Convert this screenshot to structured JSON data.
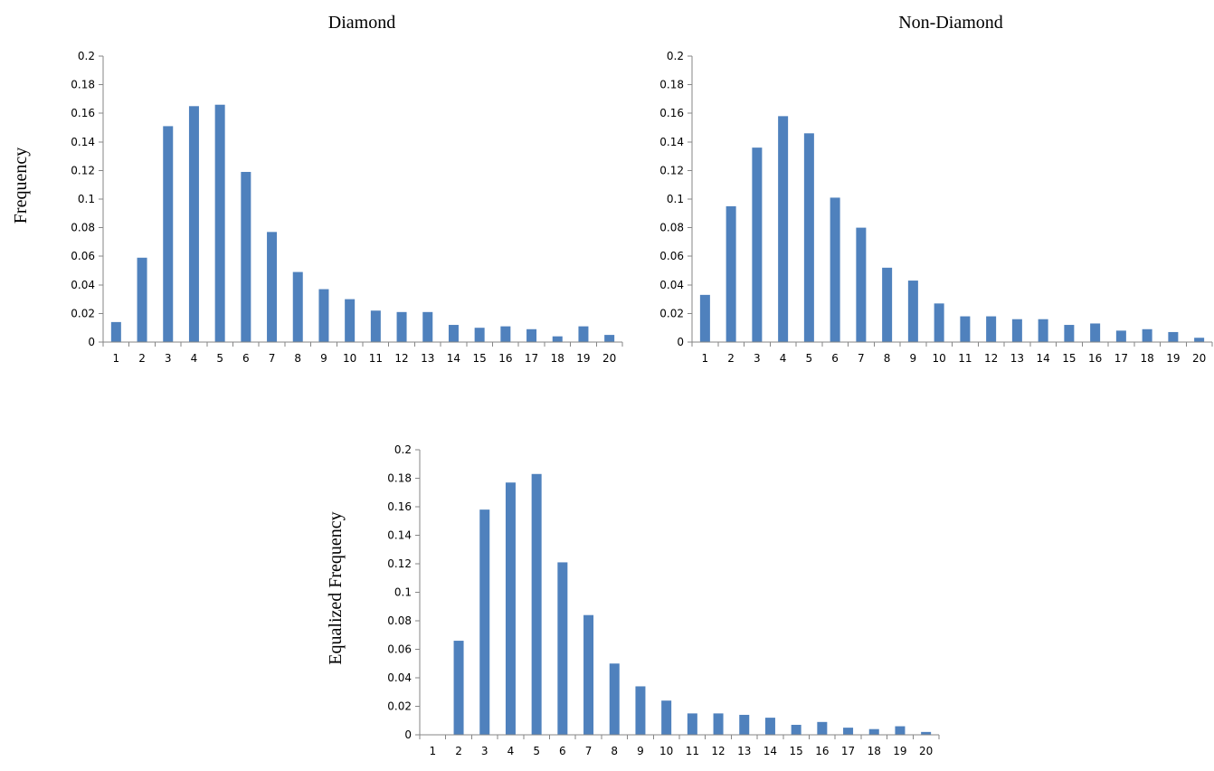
{
  "colors": {
    "bar": "#4f81bd",
    "axis": "#868686",
    "text": "#000000"
  },
  "chart_data": [
    {
      "id": "diamond",
      "type": "bar",
      "title": "Diamond",
      "xlabel": "",
      "ylabel": "Frequency",
      "ylim": [
        0,
        0.2
      ],
      "yticks": [
        "0",
        "0.02",
        "0.04",
        "0.06",
        "0.08",
        "0.1",
        "0.12",
        "0.14",
        "0.16",
        "0.18",
        "0.2"
      ],
      "categories": [
        "1",
        "2",
        "3",
        "4",
        "5",
        "6",
        "7",
        "8",
        "9",
        "10",
        "11",
        "12",
        "13",
        "14",
        "15",
        "16",
        "17",
        "18",
        "19",
        "20"
      ],
      "values": [
        0.014,
        0.059,
        0.151,
        0.165,
        0.166,
        0.119,
        0.077,
        0.049,
        0.037,
        0.03,
        0.022,
        0.021,
        0.021,
        0.012,
        0.01,
        0.011,
        0.009,
        0.004,
        0.011,
        0.005
      ],
      "grid": false,
      "legend": "none"
    },
    {
      "id": "non-diamond",
      "type": "bar",
      "title": "Non-Diamond",
      "xlabel": "",
      "ylabel": "",
      "ylim": [
        0,
        0.2
      ],
      "yticks": [
        "0",
        "0.02",
        "0.04",
        "0.06",
        "0.08",
        "0.1",
        "0.12",
        "0.14",
        "0.16",
        "0.18",
        "0.2"
      ],
      "categories": [
        "1",
        "2",
        "3",
        "4",
        "5",
        "6",
        "7",
        "8",
        "9",
        "10",
        "11",
        "12",
        "13",
        "14",
        "15",
        "16",
        "17",
        "18",
        "19",
        "20"
      ],
      "values": [
        0.033,
        0.095,
        0.136,
        0.158,
        0.146,
        0.101,
        0.08,
        0.052,
        0.043,
        0.027,
        0.018,
        0.018,
        0.016,
        0.016,
        0.012,
        0.013,
        0.008,
        0.009,
        0.007,
        0.003
      ],
      "grid": false,
      "legend": "none"
    },
    {
      "id": "equalized",
      "type": "bar",
      "title": "",
      "xlabel": "",
      "ylabel": "Equalized Frequency",
      "ylim": [
        0,
        0.2
      ],
      "yticks": [
        "0",
        "0.02",
        "0.04",
        "0.06",
        "0.08",
        "0.1",
        "0.12",
        "0.14",
        "0.16",
        "0.18",
        "0.2"
      ],
      "categories": [
        "1",
        "2",
        "3",
        "4",
        "5",
        "6",
        "7",
        "8",
        "9",
        "10",
        "11",
        "12",
        "13",
        "14",
        "15",
        "16",
        "17",
        "18",
        "19",
        "20"
      ],
      "values": [
        0,
        0.066,
        0.158,
        0.177,
        0.183,
        0.121,
        0.084,
        0.05,
        0.034,
        0.024,
        0.015,
        0.015,
        0.014,
        0.012,
        0.007,
        0.009,
        0.005,
        0.004,
        0.006,
        0.002
      ],
      "grid": false,
      "legend": "none"
    }
  ]
}
